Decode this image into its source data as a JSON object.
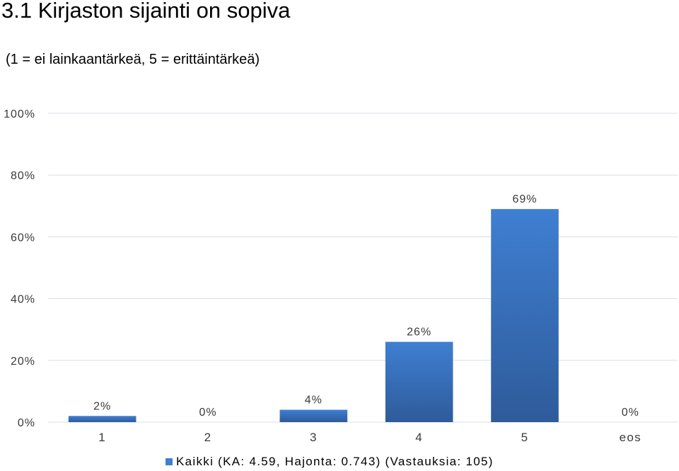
{
  "title": "3.1 Kirjaston sijainti on sopiva",
  "subtitle": "(1 = ei lainkaantärkeä, 5 = erittäintärkeä)",
  "legend": {
    "label": "Kaikki (KA: 4.59, Hajonta: 0.743) (Vastauksia: 105)"
  },
  "colors": {
    "bar_top": "#3f7fd2",
    "bar_bottom": "#2e5b9a",
    "grid": "#d9dde6",
    "text": "#3a3a3a"
  },
  "chart_data": {
    "type": "bar",
    "title": "3.1 Kirjaston sijainti on sopiva",
    "subtitle": "(1 = ei lainkaantärkeä, 5 = erittäintärkeä)",
    "categories": [
      "1",
      "2",
      "3",
      "4",
      "5",
      "eos"
    ],
    "series": [
      {
        "name": "Kaikki (KA: 4.59, Hajonta: 0.743) (Vastauksia: 105)",
        "values": [
          2,
          0,
          4,
          26,
          69,
          0
        ],
        "labels": [
          "2%",
          "0%",
          "4%",
          "26%",
          "69%",
          "0%"
        ]
      }
    ],
    "yticks": [
      "0%",
      "20%",
      "40%",
      "60%",
      "80%",
      "100%"
    ],
    "ylim": [
      0,
      100
    ],
    "grid": true,
    "legend_position": "bottom"
  }
}
